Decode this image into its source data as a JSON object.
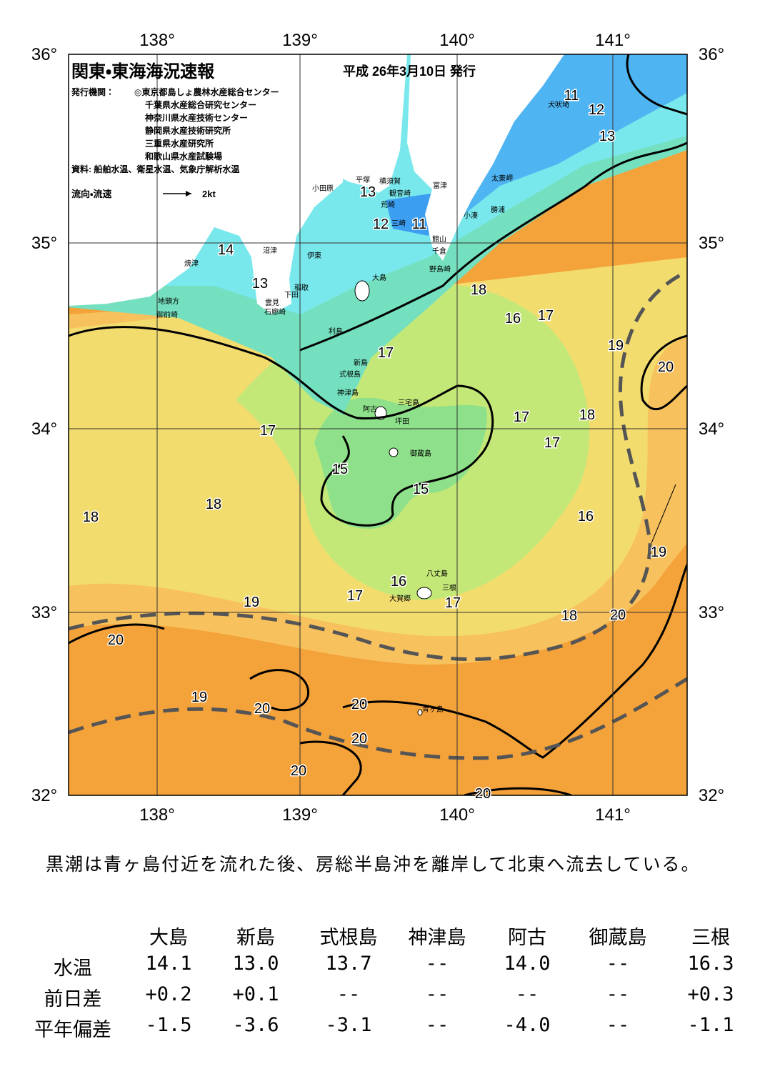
{
  "header": {
    "title": "関東・東海海況速報",
    "date": "平成 26年3月10日 発行",
    "issuer_label": "発行機関：",
    "issuers": [
      "◎東京都島しょ農林水産総合センター",
      "千葉県水産総合研究センター",
      "神奈川県水産技術センター",
      "静岡県水産技術研究所",
      "三重県水産研究所",
      "和歌山県水産試験場"
    ],
    "source": "資料: 船舶水温、衛星水温、気象庁解析水温",
    "legend_label": "流向・流速",
    "legend_speed": "2kt"
  },
  "axes": {
    "lon_labels": [
      "138°",
      "139°",
      "140°",
      "141°"
    ],
    "lat_labels": [
      "36°",
      "35°",
      "34°",
      "33°",
      "32°"
    ]
  },
  "contour_labels": [
    "11",
    "12",
    "13",
    "13",
    "12",
    "11",
    "14",
    "13",
    "18",
    "16",
    "17",
    "19",
    "20",
    "17",
    "17",
    "17",
    "18",
    "17",
    "15",
    "15",
    "18",
    "18",
    "16",
    "19",
    "16",
    "17",
    "17",
    "19",
    "18",
    "20",
    "20",
    "19",
    "20",
    "20",
    "20",
    "20",
    "20"
  ],
  "place_names": [
    "犬吠埼",
    "平塚",
    "横須賀",
    "観音崎",
    "小田原",
    "富津",
    "太東岬",
    "荒崎",
    "三崎",
    "勝浦",
    "小湊",
    "館山",
    "千倉",
    "沼津",
    "伊東",
    "焼津",
    "野島崎",
    "大島",
    "稲取",
    "下田",
    "雲見",
    "石廊崎",
    "地頭方",
    "御前崎",
    "利島",
    "新島",
    "式根島",
    "神津島",
    "三宅島",
    "阿古",
    "坪田",
    "御蔵島",
    "八丈島",
    "三根",
    "大賀郷",
    "青ヶ島"
  ],
  "summary": "黒潮は青ヶ島付近を流れた後、房総半島沖を離岸して北東へ流去している。",
  "table": {
    "columns": [
      "大島",
      "新島",
      "式根島",
      "神津島",
      "阿古",
      "御蔵島",
      "三根"
    ],
    "rows": [
      {
        "label": "水温",
        "cells": [
          "14.1",
          "13.0",
          "13.7",
          "--",
          "14.0",
          "--",
          "16.3"
        ]
      },
      {
        "label": "前日差",
        "cells": [
          "+0.2",
          "+0.1",
          "--",
          "--",
          "--",
          "--",
          "+0.3"
        ]
      },
      {
        "label": "平年偏差",
        "cells": [
          "-1.5",
          "-3.6",
          "-3.1",
          "--",
          "-4.0",
          "--",
          "-1.1"
        ]
      }
    ]
  }
}
